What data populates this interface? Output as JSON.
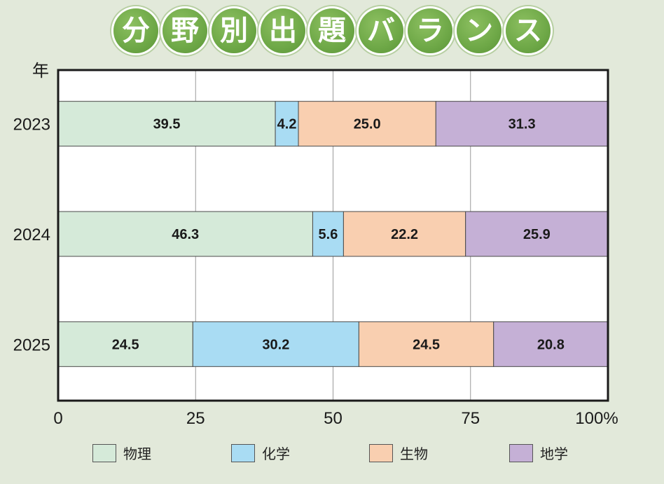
{
  "title_chars": [
    "分",
    "野",
    "別",
    "出",
    "題",
    "バ",
    "ラ",
    "ン",
    "ス"
  ],
  "chart_data": {
    "type": "bar",
    "orientation": "horizontal",
    "stacked": true,
    "title": "分野別出題バランス",
    "y_axis_label": "年",
    "categories": [
      "2023",
      "2024",
      "2025"
    ],
    "series": [
      {
        "name": "物理",
        "color": "#d5ead9",
        "values": [
          39.5,
          46.3,
          24.5
        ]
      },
      {
        "name": "化学",
        "color": "#a9dcf3",
        "values": [
          4.2,
          5.6,
          30.2
        ]
      },
      {
        "name": "生物",
        "color": "#f9cfb0",
        "values": [
          25.0,
          22.2,
          24.5
        ]
      },
      {
        "name": "地学",
        "color": "#c5b0d6",
        "values": [
          31.3,
          25.9,
          20.8
        ]
      }
    ],
    "x_ticks": [
      "0",
      "25",
      "50",
      "75",
      "100%"
    ],
    "x_tick_values": [
      0,
      25,
      50,
      75,
      100
    ],
    "xlim": [
      0,
      100
    ],
    "grid": true,
    "legend_position": "bottom"
  }
}
